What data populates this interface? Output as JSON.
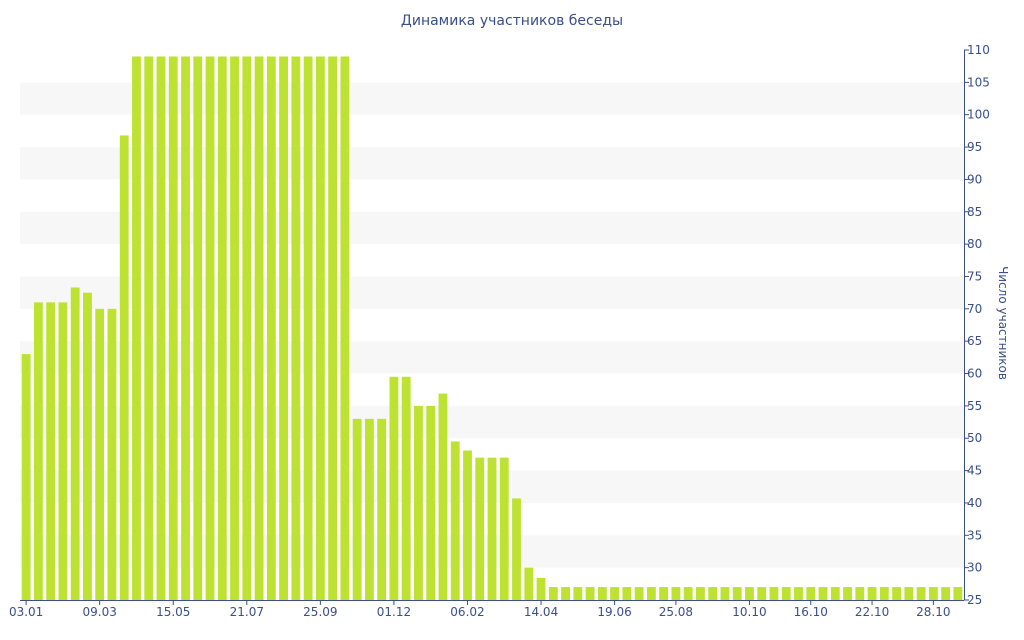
{
  "chart_data": {
    "type": "bar",
    "title": "Динамика участников беседы",
    "ylabel": "Число участников",
    "xlabel": "",
    "ylim": [
      25,
      110
    ],
    "y_ticks": [
      25,
      30,
      35,
      40,
      45,
      50,
      55,
      60,
      65,
      70,
      75,
      80,
      85,
      90,
      95,
      100,
      105,
      110
    ],
    "y_axis_side": "right",
    "x_tick_labels": [
      "03.01",
      "09.03",
      "15.05",
      "21.07",
      "25.09",
      "01.12",
      "06.02",
      "14.04",
      "19.06",
      "25.08",
      "10.10",
      "16.10",
      "22.10",
      "28.10"
    ],
    "x_tick_indices": [
      0,
      6,
      12,
      18,
      24,
      30,
      36,
      42,
      48,
      53,
      59,
      64,
      69,
      74
    ],
    "grid": "alternating horizontal bands",
    "colors": {
      "bar": "#bde232",
      "band": "#f7f7f7",
      "axis": "#3a4f8c",
      "text": "#3a4f8c"
    },
    "values": [
      63,
      71,
      71,
      71,
      73.3,
      72.5,
      70,
      70,
      96.8,
      109,
      109,
      109,
      109,
      109,
      109,
      109,
      109,
      109,
      109,
      109,
      109,
      109,
      109,
      109,
      109,
      109,
      109,
      53,
      53,
      53,
      59.5,
      59.5,
      55,
      55,
      56.9,
      49.5,
      48.1,
      47,
      47,
      47,
      40.7,
      30,
      28.4,
      27,
      27,
      27,
      27,
      27,
      27,
      27,
      27,
      27,
      27,
      27,
      27,
      27,
      27,
      27,
      27,
      27,
      27,
      27,
      27,
      27,
      27,
      27,
      27,
      27,
      27,
      27,
      27,
      27,
      27,
      27,
      27,
      27,
      27
    ]
  }
}
